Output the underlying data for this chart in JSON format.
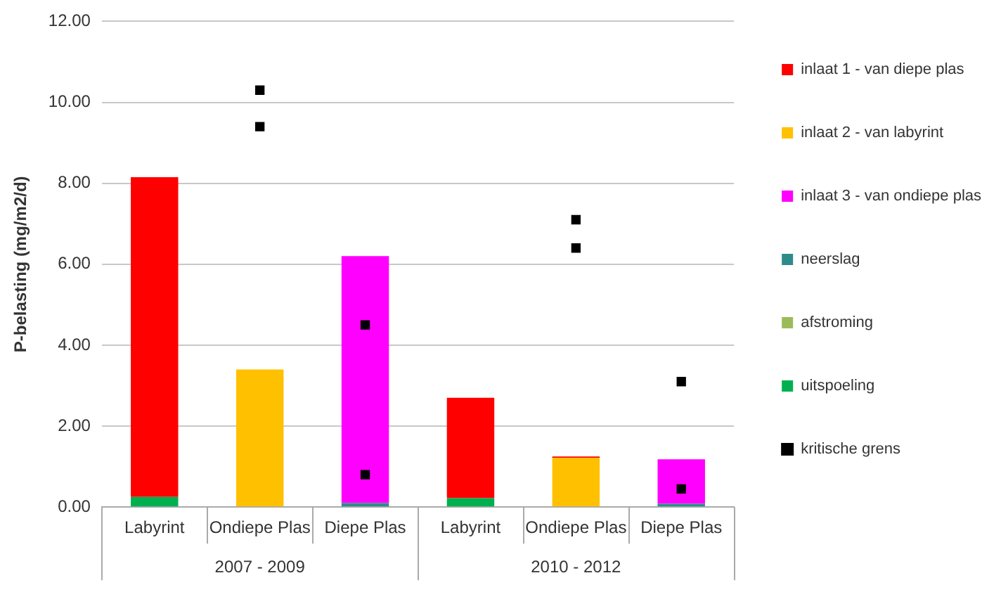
{
  "chart_data": {
    "type": "bar",
    "stacked": true,
    "ylabel": "P-belasting (mg/m2/d)",
    "categories": [
      "Labyrint",
      "Ondiepe Plas",
      "Diepe Plas",
      "Labyrint",
      "Ondiepe Plas",
      "Diepe Plas"
    ],
    "annotations": [
      "2007 - 2009",
      "2010 - 2012"
    ],
    "series": [
      {
        "name": "uitspoeling",
        "color": "#00b050",
        "values": [
          0.25,
          null,
          null,
          0.22,
          null,
          null
        ]
      },
      {
        "name": "afstroming",
        "color": "#9bbb59",
        "values": [
          null,
          null,
          null,
          null,
          null,
          null
        ]
      },
      {
        "name": "neerslag",
        "color": "#2e8b8b",
        "values": [
          null,
          null,
          0.1,
          null,
          null,
          0.08
        ]
      },
      {
        "name": "inlaat 3 - van ondiepe plas",
        "color": "#ff00ff",
        "values": [
          null,
          null,
          6.1,
          null,
          null,
          1.1
        ]
      },
      {
        "name": "inlaat 2 - van labyrint",
        "color": "#ffc000",
        "values": [
          null,
          3.4,
          null,
          null,
          1.22,
          null
        ]
      },
      {
        "name": "inlaat 1 - van diepe plas",
        "color": "#ff0000",
        "values": [
          7.9,
          null,
          null,
          2.48,
          0.03,
          null
        ]
      },
      {
        "name": "kritische grens",
        "type": "scatter",
        "marker": "square",
        "color": "#000000",
        "values": [
          null,
          10.3,
          4.5,
          null,
          7.1,
          3.1
        ]
      },
      {
        "type": "scatter",
        "marker": "square",
        "color": "#000000",
        "values": [
          null,
          9.4,
          0.8,
          null,
          6.4,
          0.45
        ]
      }
    ],
    "ylim": [
      0,
      12
    ],
    "yticks": [
      {
        "value": 0,
        "label": "0.00"
      },
      {
        "value": 2,
        "label": "2.00"
      },
      {
        "value": 4,
        "label": "4.00"
      },
      {
        "value": 6,
        "label": "6.00"
      },
      {
        "value": 8,
        "label": "8.00"
      },
      {
        "value": 10,
        "label": "10.00"
      },
      {
        "value": 12,
        "label": "12.00"
      }
    ],
    "grid": "y",
    "legend": "right"
  }
}
